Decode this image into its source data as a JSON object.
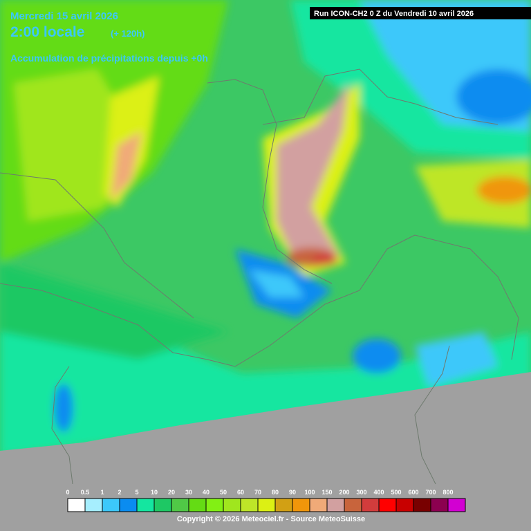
{
  "header": {
    "date": "Mercredi 15 avril 2026",
    "time": "2:00 locale",
    "lead": "(+ 120h)",
    "subtitle": "Accumulation de précipitations depuis +0h"
  },
  "run_label": "Run ICON-CH2 0 Z du Vendredi 10 avril 2026",
  "legend": {
    "stops": [
      {
        "value": 0,
        "color": "#ffffff"
      },
      {
        "value": 0.5,
        "color": "#a6eefe"
      },
      {
        "value": 1,
        "color": "#3cc8fa"
      },
      {
        "value": 2,
        "color": "#0a8cf0"
      },
      {
        "value": 5,
        "color": "#14e6a0"
      },
      {
        "value": 10,
        "color": "#1ec864"
      },
      {
        "value": 20,
        "color": "#50c846"
      },
      {
        "value": 30,
        "color": "#64dc14"
      },
      {
        "value": 40,
        "color": "#82f014"
      },
      {
        "value": 50,
        "color": "#a0e61e"
      },
      {
        "value": 60,
        "color": "#bee628"
      },
      {
        "value": 70,
        "color": "#dcf014"
      },
      {
        "value": 80,
        "color": "#d2a014"
      },
      {
        "value": 90,
        "color": "#f0960a"
      },
      {
        "value": 100,
        "color": "#f0aa78"
      },
      {
        "value": 150,
        "color": "#d2a0a0"
      },
      {
        "value": 200,
        "color": "#c8643c"
      },
      {
        "value": 300,
        "color": "#d23c3c"
      },
      {
        "value": 400,
        "color": "#ff0000"
      },
      {
        "value": 500,
        "color": "#c80000"
      },
      {
        "value": 600,
        "color": "#780000"
      },
      {
        "value": 700,
        "color": "#8c0050"
      },
      {
        "value": 800,
        "color": "#d200d2"
      }
    ]
  },
  "copyright": "Copyright © 2026 Meteociel.fr - Source MeteoSuisse"
}
